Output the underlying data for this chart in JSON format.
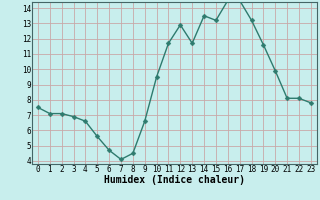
{
  "x": [
    0,
    1,
    2,
    3,
    4,
    5,
    6,
    7,
    8,
    9,
    10,
    11,
    12,
    13,
    14,
    15,
    16,
    17,
    18,
    19,
    20,
    21,
    22,
    23
  ],
  "y": [
    7.5,
    7.1,
    7.1,
    6.9,
    6.6,
    5.6,
    4.7,
    4.1,
    4.5,
    6.6,
    9.5,
    11.7,
    12.9,
    11.7,
    13.5,
    13.2,
    14.5,
    14.5,
    13.2,
    11.6,
    9.9,
    8.1,
    8.1,
    7.8
  ],
  "xlabel": "Humidex (Indice chaleur)",
  "ylim_min": 3.8,
  "ylim_max": 14.4,
  "xlim_min": -0.5,
  "xlim_max": 23.5,
  "bg_color": "#c8eeed",
  "line_color": "#2e7b6e",
  "grid_color": "#c8a8a8",
  "marker_size": 2.5,
  "line_width": 1.0,
  "yticks": [
    4,
    5,
    6,
    7,
    8,
    9,
    10,
    11,
    12,
    13,
    14
  ],
  "xticks": [
    0,
    1,
    2,
    3,
    4,
    5,
    6,
    7,
    8,
    9,
    10,
    11,
    12,
    13,
    14,
    15,
    16,
    17,
    18,
    19,
    20,
    21,
    22,
    23
  ],
  "tick_fontsize": 5.5,
  "xlabel_fontsize": 7.0
}
